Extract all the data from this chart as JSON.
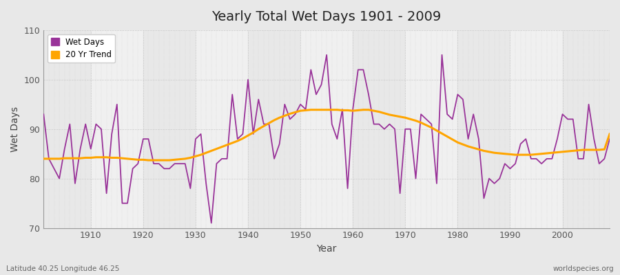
{
  "title": "Yearly Total Wet Days 1901 - 2009",
  "xlabel": "Year",
  "ylabel": "Wet Days",
  "lat_lon_label": "Latitude 40.25 Longitude 46.25",
  "watermark": "worldspecies.org",
  "ylim": [
    70,
    110
  ],
  "yticks": [
    70,
    80,
    90,
    100,
    110
  ],
  "years": [
    1901,
    1902,
    1903,
    1904,
    1905,
    1906,
    1907,
    1908,
    1909,
    1910,
    1911,
    1912,
    1913,
    1914,
    1915,
    1916,
    1917,
    1918,
    1919,
    1920,
    1921,
    1922,
    1923,
    1924,
    1925,
    1926,
    1927,
    1928,
    1929,
    1930,
    1931,
    1932,
    1933,
    1934,
    1935,
    1936,
    1937,
    1938,
    1939,
    1940,
    1941,
    1942,
    1943,
    1944,
    1945,
    1946,
    1947,
    1948,
    1949,
    1950,
    1951,
    1952,
    1953,
    1954,
    1955,
    1956,
    1957,
    1958,
    1959,
    1960,
    1961,
    1962,
    1963,
    1964,
    1965,
    1966,
    1967,
    1968,
    1969,
    1970,
    1971,
    1972,
    1973,
    1974,
    1975,
    1976,
    1977,
    1978,
    1979,
    1980,
    1981,
    1982,
    1983,
    1984,
    1985,
    1986,
    1987,
    1988,
    1989,
    1990,
    1991,
    1992,
    1993,
    1994,
    1995,
    1996,
    1997,
    1998,
    1999,
    2000,
    2001,
    2002,
    2003,
    2004,
    2005,
    2006,
    2007,
    2008,
    2009
  ],
  "wet_days": [
    93,
    84,
    82,
    80,
    86,
    91,
    79,
    86,
    91,
    86,
    91,
    90,
    77,
    89,
    95,
    75,
    75,
    82,
    83,
    88,
    88,
    83,
    83,
    82,
    82,
    83,
    83,
    83,
    78,
    88,
    89,
    79,
    71,
    83,
    84,
    84,
    97,
    88,
    89,
    100,
    89,
    96,
    91,
    91,
    84,
    87,
    95,
    92,
    93,
    95,
    94,
    102,
    97,
    99,
    105,
    91,
    88,
    94,
    78,
    94,
    102,
    102,
    97,
    91,
    91,
    90,
    91,
    90,
    77,
    90,
    90,
    80,
    93,
    92,
    91,
    79,
    105,
    93,
    92,
    97,
    96,
    88,
    93,
    88,
    76,
    80,
    79,
    80,
    83,
    82,
    83,
    87,
    88,
    84,
    84,
    83,
    84,
    84,
    88,
    93,
    92,
    92,
    84,
    84,
    95,
    88,
    83,
    84,
    88
  ],
  "trend": [
    84.0,
    84.0,
    84.0,
    84.0,
    84.1,
    84.1,
    84.1,
    84.1,
    84.2,
    84.2,
    84.3,
    84.3,
    84.3,
    84.2,
    84.2,
    84.1,
    84.0,
    83.9,
    83.8,
    83.8,
    83.7,
    83.7,
    83.7,
    83.7,
    83.7,
    83.8,
    83.9,
    84.0,
    84.2,
    84.5,
    84.8,
    85.2,
    85.6,
    86.0,
    86.4,
    86.8,
    87.2,
    87.6,
    88.1,
    88.7,
    89.3,
    90.0,
    90.6,
    91.2,
    91.8,
    92.3,
    92.7,
    93.1,
    93.4,
    93.7,
    93.8,
    93.9,
    93.9,
    93.9,
    93.9,
    93.9,
    93.9,
    93.8,
    93.8,
    93.7,
    93.8,
    93.9,
    93.9,
    93.7,
    93.5,
    93.2,
    92.9,
    92.7,
    92.5,
    92.3,
    92.0,
    91.7,
    91.3,
    90.8,
    90.3,
    89.7,
    89.1,
    88.5,
    87.9,
    87.3,
    86.9,
    86.5,
    86.2,
    85.9,
    85.6,
    85.4,
    85.2,
    85.1,
    85.0,
    84.9,
    84.8,
    84.8,
    84.8,
    84.8,
    84.9,
    85.0,
    85.1,
    85.2,
    85.3,
    85.4,
    85.5,
    85.6,
    85.7,
    85.8,
    85.8,
    85.8,
    85.8,
    85.9,
    89.0
  ],
  "wet_days_color": "#993399",
  "trend_color": "#FFA500",
  "bg_color": "#e8e8e8",
  "plot_bg_color": "#f0f0f0",
  "grid_color": "#cccccc",
  "legend_bg": "#ffffff"
}
